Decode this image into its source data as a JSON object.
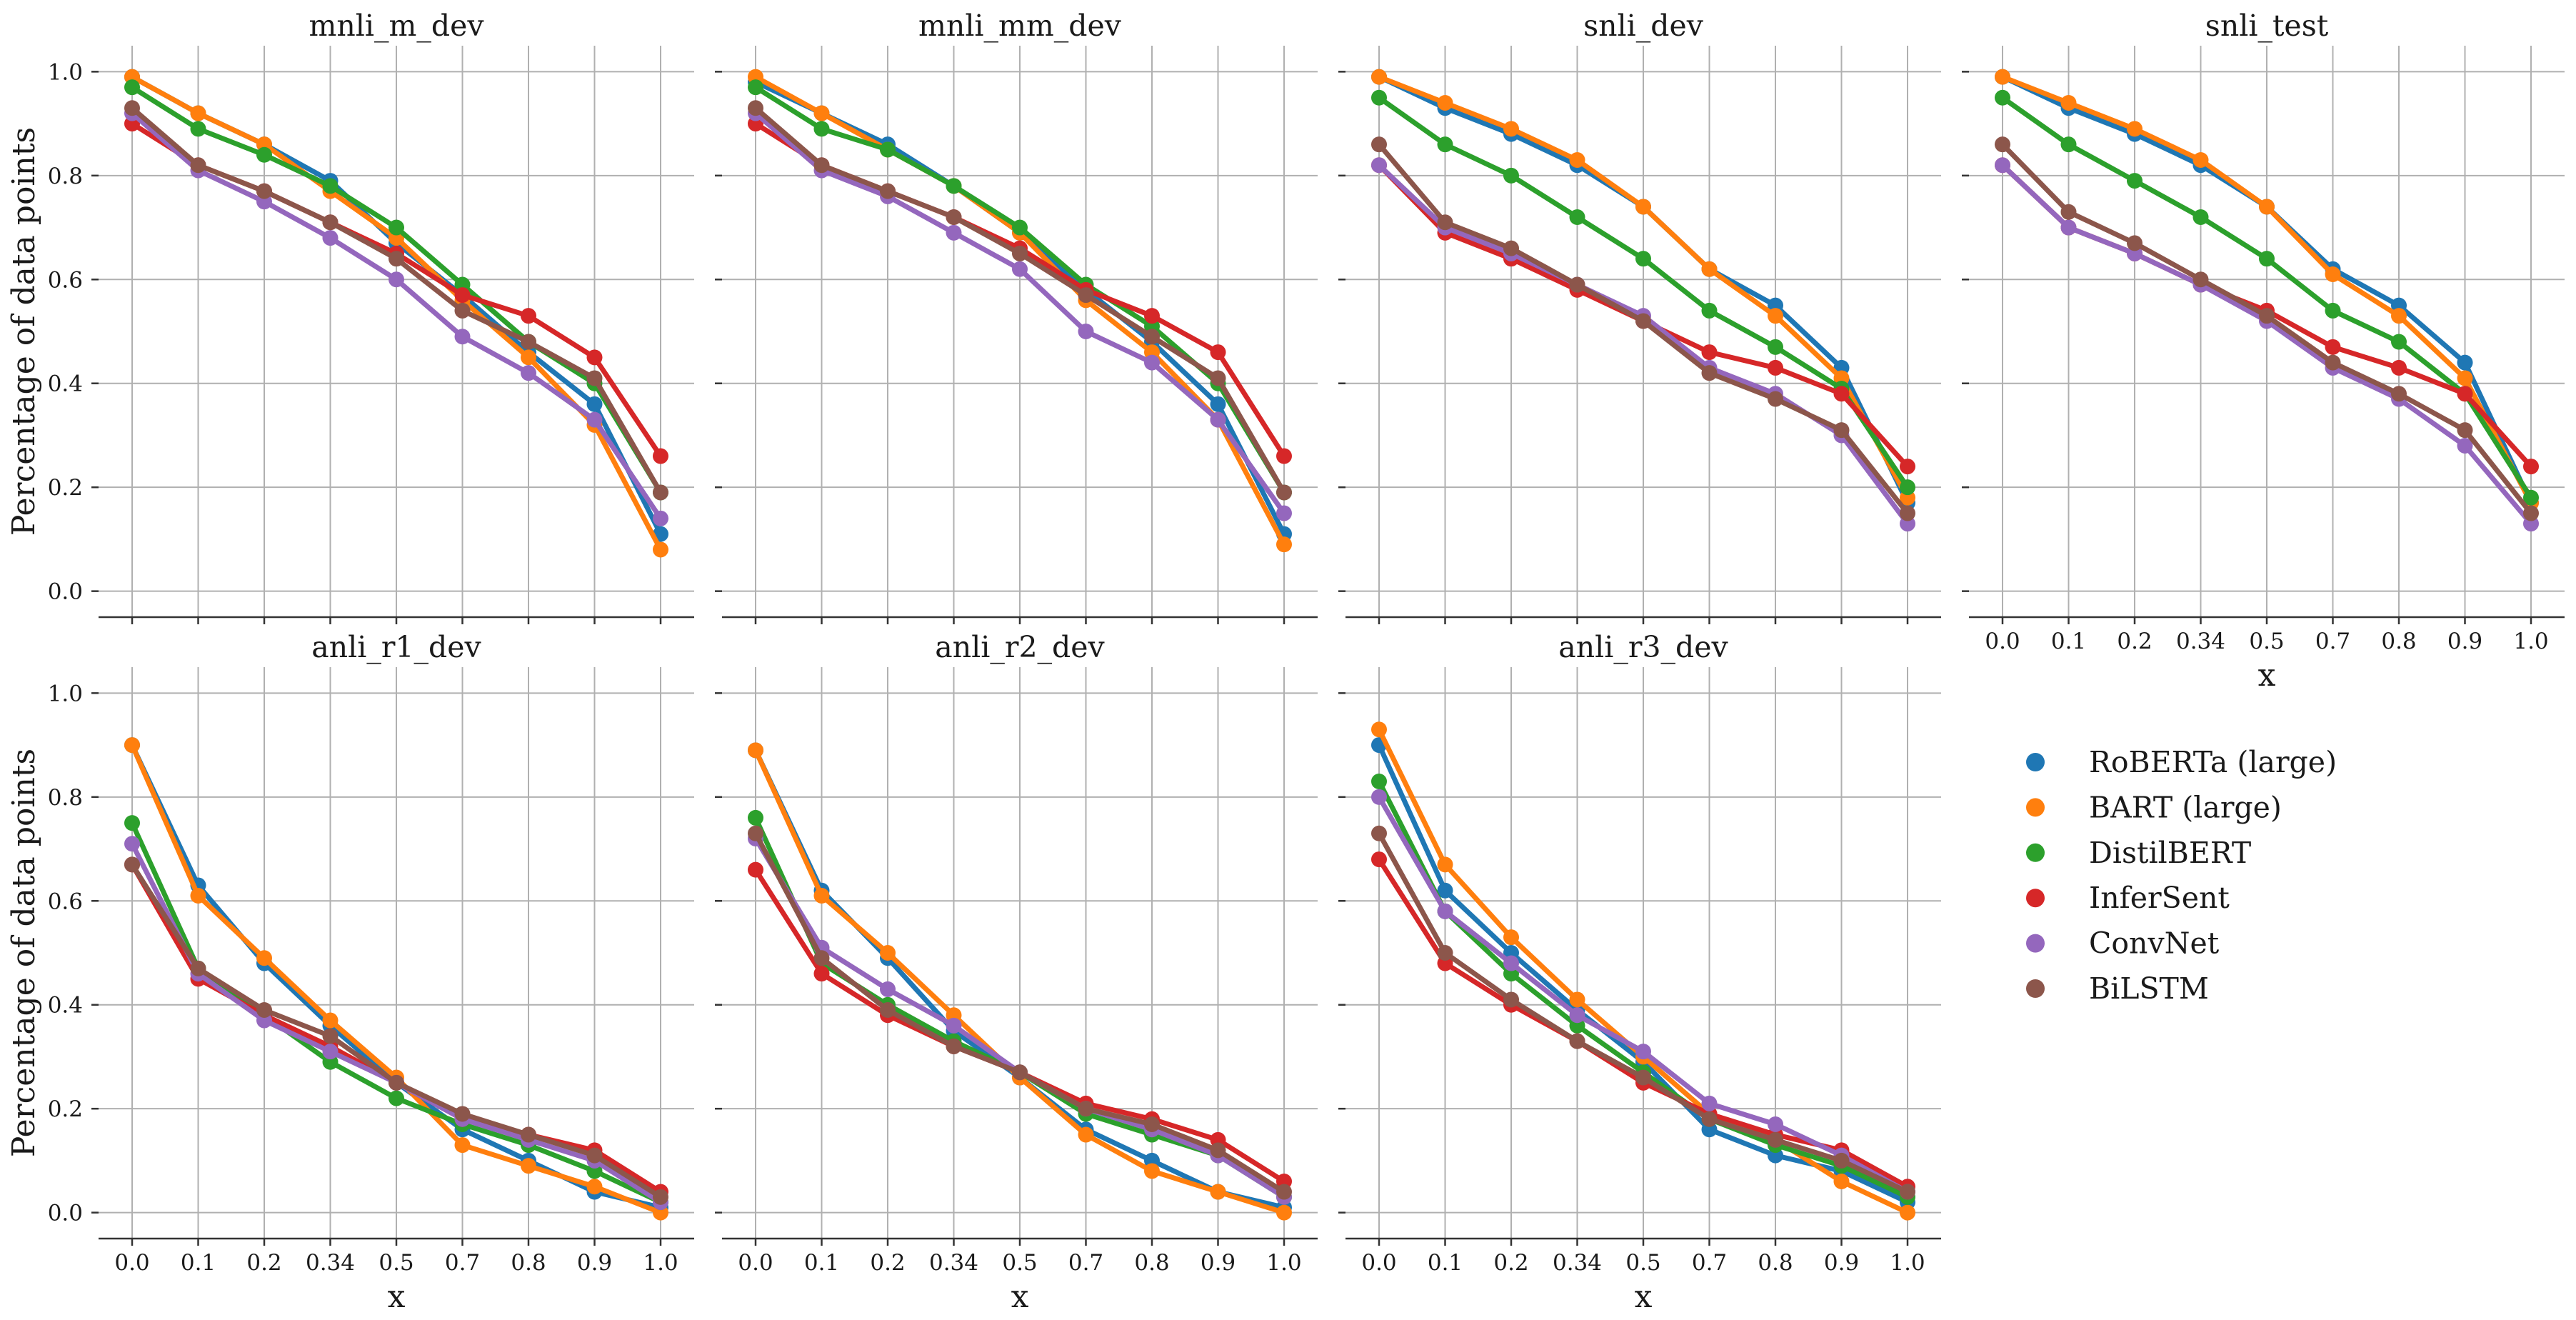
{
  "figure": {
    "ylabel": "Percentage of data points",
    "xlabel": "x"
  },
  "series_styles": [
    {
      "name": "RoBERTa (large)",
      "color": "#1f77b4"
    },
    {
      "name": "BART (large)",
      "color": "#ff7f0e"
    },
    {
      "name": "DistilBERT",
      "color": "#2ca02c"
    },
    {
      "name": "InferSent",
      "color": "#d62728"
    },
    {
      "name": "ConvNet",
      "color": "#9467bd"
    },
    {
      "name": "BiLSTM",
      "color": "#8c564b"
    }
  ],
  "chart_data": [
    {
      "type": "line",
      "title": "mnli_m_dev",
      "categories": [
        "0.0",
        "0.1",
        "0.2",
        "0.34",
        "0.5",
        "0.7",
        "0.8",
        "0.9",
        "1.0"
      ],
      "ylim": [
        -0.05,
        1.05
      ],
      "yticks": [
        "0.0",
        "0.2",
        "0.4",
        "0.6",
        "0.8",
        "1.0"
      ],
      "grid": true,
      "series": [
        {
          "name": "RoBERTa (large)",
          "values": [
            0.99,
            0.92,
            0.86,
            0.79,
            0.67,
            0.57,
            0.46,
            0.36,
            0.11
          ]
        },
        {
          "name": "BART (large)",
          "values": [
            0.99,
            0.92,
            0.86,
            0.77,
            0.68,
            0.56,
            0.45,
            0.32,
            0.08
          ]
        },
        {
          "name": "DistilBERT",
          "values": [
            0.97,
            0.89,
            0.84,
            0.78,
            0.7,
            0.59,
            0.48,
            0.4,
            0.19
          ]
        },
        {
          "name": "InferSent",
          "values": [
            0.9,
            0.82,
            0.77,
            0.71,
            0.65,
            0.57,
            0.53,
            0.45,
            0.26
          ]
        },
        {
          "name": "ConvNet",
          "values": [
            0.92,
            0.81,
            0.75,
            0.68,
            0.6,
            0.49,
            0.42,
            0.33,
            0.14
          ]
        },
        {
          "name": "BiLSTM",
          "values": [
            0.93,
            0.82,
            0.77,
            0.71,
            0.64,
            0.54,
            0.48,
            0.41,
            0.19
          ]
        }
      ]
    },
    {
      "type": "line",
      "title": "mnli_mm_dev",
      "categories": [
        "0.0",
        "0.1",
        "0.2",
        "0.34",
        "0.5",
        "0.7",
        "0.8",
        "0.9",
        "1.0"
      ],
      "ylim": [
        -0.05,
        1.05
      ],
      "yticks": [
        "0.0",
        "0.2",
        "0.4",
        "0.6",
        "0.8",
        "1.0"
      ],
      "grid": true,
      "series": [
        {
          "name": "RoBERTa (large)",
          "values": [
            0.98,
            0.92,
            0.86,
            0.78,
            0.69,
            0.58,
            0.48,
            0.36,
            0.11
          ]
        },
        {
          "name": "BART (large)",
          "values": [
            0.99,
            0.92,
            0.85,
            0.78,
            0.69,
            0.56,
            0.46,
            0.33,
            0.09
          ]
        },
        {
          "name": "DistilBERT",
          "values": [
            0.97,
            0.89,
            0.85,
            0.78,
            0.7,
            0.59,
            0.51,
            0.4,
            0.19
          ]
        },
        {
          "name": "InferSent",
          "values": [
            0.9,
            0.82,
            0.77,
            0.72,
            0.66,
            0.58,
            0.53,
            0.46,
            0.26
          ]
        },
        {
          "name": "ConvNet",
          "values": [
            0.92,
            0.81,
            0.76,
            0.69,
            0.62,
            0.5,
            0.44,
            0.33,
            0.15
          ]
        },
        {
          "name": "BiLSTM",
          "values": [
            0.93,
            0.82,
            0.77,
            0.72,
            0.65,
            0.57,
            0.49,
            0.41,
            0.19
          ]
        }
      ]
    },
    {
      "type": "line",
      "title": "snli_dev",
      "categories": [
        "0.0",
        "0.1",
        "0.2",
        "0.34",
        "0.5",
        "0.7",
        "0.8",
        "0.9",
        "1.0"
      ],
      "ylim": [
        -0.05,
        1.05
      ],
      "yticks": [
        "0.0",
        "0.2",
        "0.4",
        "0.6",
        "0.8",
        "1.0"
      ],
      "grid": true,
      "series": [
        {
          "name": "RoBERTa (large)",
          "values": [
            0.99,
            0.93,
            0.88,
            0.82,
            0.74,
            0.62,
            0.55,
            0.43,
            0.17
          ]
        },
        {
          "name": "BART (large)",
          "values": [
            0.99,
            0.94,
            0.89,
            0.83,
            0.74,
            0.62,
            0.53,
            0.41,
            0.18
          ]
        },
        {
          "name": "DistilBERT",
          "values": [
            0.95,
            0.86,
            0.8,
            0.72,
            0.64,
            0.54,
            0.47,
            0.39,
            0.2
          ]
        },
        {
          "name": "InferSent",
          "values": [
            0.82,
            0.69,
            0.64,
            0.58,
            0.52,
            0.46,
            0.43,
            0.38,
            0.24
          ]
        },
        {
          "name": "ConvNet",
          "values": [
            0.82,
            0.7,
            0.65,
            0.59,
            0.53,
            0.43,
            0.38,
            0.3,
            0.13
          ]
        },
        {
          "name": "BiLSTM",
          "values": [
            0.86,
            0.71,
            0.66,
            0.59,
            0.52,
            0.42,
            0.37,
            0.31,
            0.15
          ]
        }
      ]
    },
    {
      "type": "line",
      "title": "snli_test",
      "xlabel": "x",
      "categories": [
        "0.0",
        "0.1",
        "0.2",
        "0.34",
        "0.5",
        "0.7",
        "0.8",
        "0.9",
        "1.0"
      ],
      "ylim": [
        -0.05,
        1.05
      ],
      "yticks": [
        "0.0",
        "0.2",
        "0.4",
        "0.6",
        "0.8",
        "1.0"
      ],
      "grid": true,
      "series": [
        {
          "name": "RoBERTa (large)",
          "values": [
            0.99,
            0.93,
            0.88,
            0.82,
            0.74,
            0.62,
            0.55,
            0.44,
            0.17
          ]
        },
        {
          "name": "BART (large)",
          "values": [
            0.99,
            0.94,
            0.89,
            0.83,
            0.74,
            0.61,
            0.53,
            0.41,
            0.17
          ]
        },
        {
          "name": "DistilBERT",
          "values": [
            0.95,
            0.86,
            0.79,
            0.72,
            0.64,
            0.54,
            0.48,
            0.38,
            0.18
          ]
        },
        {
          "name": "InferSent",
          "values": [
            0.82,
            0.7,
            0.65,
            0.59,
            0.54,
            0.47,
            0.43,
            0.38,
            0.24
          ]
        },
        {
          "name": "ConvNet",
          "values": [
            0.82,
            0.7,
            0.65,
            0.59,
            0.52,
            0.43,
            0.37,
            0.28,
            0.13
          ]
        },
        {
          "name": "BiLSTM",
          "values": [
            0.86,
            0.73,
            0.67,
            0.6,
            0.53,
            0.44,
            0.38,
            0.31,
            0.15
          ]
        }
      ]
    },
    {
      "type": "line",
      "title": "anli_r1_dev",
      "xlabel": "x",
      "categories": [
        "0.0",
        "0.1",
        "0.2",
        "0.34",
        "0.5",
        "0.7",
        "0.8",
        "0.9",
        "1.0"
      ],
      "ylim": [
        -0.05,
        1.05
      ],
      "yticks": [
        "0.0",
        "0.2",
        "0.4",
        "0.6",
        "0.8",
        "1.0"
      ],
      "grid": true,
      "series": [
        {
          "name": "RoBERTa (large)",
          "values": [
            0.9,
            0.63,
            0.48,
            0.36,
            0.25,
            0.16,
            0.1,
            0.04,
            0.01
          ]
        },
        {
          "name": "BART (large)",
          "values": [
            0.9,
            0.61,
            0.49,
            0.37,
            0.26,
            0.13,
            0.09,
            0.05,
            0.0
          ]
        },
        {
          "name": "DistilBERT",
          "values": [
            0.75,
            0.47,
            0.38,
            0.29,
            0.22,
            0.17,
            0.13,
            0.08,
            0.02
          ]
        },
        {
          "name": "InferSent",
          "values": [
            0.67,
            0.45,
            0.38,
            0.32,
            0.25,
            0.18,
            0.15,
            0.12,
            0.04
          ]
        },
        {
          "name": "ConvNet",
          "values": [
            0.71,
            0.46,
            0.37,
            0.31,
            0.25,
            0.18,
            0.14,
            0.1,
            0.02
          ]
        },
        {
          "name": "BiLSTM",
          "values": [
            0.67,
            0.47,
            0.39,
            0.34,
            0.25,
            0.19,
            0.15,
            0.11,
            0.03
          ]
        }
      ]
    },
    {
      "type": "line",
      "title": "anli_r2_dev",
      "xlabel": "x",
      "categories": [
        "0.0",
        "0.1",
        "0.2",
        "0.34",
        "0.5",
        "0.7",
        "0.8",
        "0.9",
        "1.0"
      ],
      "ylim": [
        -0.05,
        1.05
      ],
      "yticks": [
        "0.0",
        "0.2",
        "0.4",
        "0.6",
        "0.8",
        "1.0"
      ],
      "grid": true,
      "series": [
        {
          "name": "RoBERTa (large)",
          "values": [
            0.89,
            0.62,
            0.49,
            0.35,
            0.26,
            0.16,
            0.1,
            0.04,
            0.01
          ]
        },
        {
          "name": "BART (large)",
          "values": [
            0.89,
            0.61,
            0.5,
            0.38,
            0.26,
            0.15,
            0.08,
            0.04,
            0.0
          ]
        },
        {
          "name": "DistilBERT",
          "values": [
            0.76,
            0.48,
            0.4,
            0.33,
            0.27,
            0.19,
            0.15,
            0.11,
            0.03
          ]
        },
        {
          "name": "InferSent",
          "values": [
            0.66,
            0.46,
            0.38,
            0.32,
            0.27,
            0.21,
            0.18,
            0.14,
            0.06
          ]
        },
        {
          "name": "ConvNet",
          "values": [
            0.72,
            0.51,
            0.43,
            0.36,
            0.27,
            0.2,
            0.16,
            0.11,
            0.03
          ]
        },
        {
          "name": "BiLSTM",
          "values": [
            0.73,
            0.49,
            0.39,
            0.32,
            0.27,
            0.2,
            0.17,
            0.12,
            0.04
          ]
        }
      ]
    },
    {
      "type": "line",
      "title": "anli_r3_dev",
      "xlabel": "x",
      "categories": [
        "0.0",
        "0.1",
        "0.2",
        "0.34",
        "0.5",
        "0.7",
        "0.8",
        "0.9",
        "1.0"
      ],
      "ylim": [
        -0.05,
        1.05
      ],
      "yticks": [
        "0.0",
        "0.2",
        "0.4",
        "0.6",
        "0.8",
        "1.0"
      ],
      "grid": true,
      "series": [
        {
          "name": "RoBERTa (large)",
          "values": [
            0.9,
            0.62,
            0.5,
            0.39,
            0.29,
            0.16,
            0.11,
            0.08,
            0.02
          ]
        },
        {
          "name": "BART (large)",
          "values": [
            0.93,
            0.67,
            0.53,
            0.41,
            0.3,
            0.19,
            0.14,
            0.06,
            0.0
          ]
        },
        {
          "name": "DistilBERT",
          "values": [
            0.83,
            0.58,
            0.46,
            0.36,
            0.27,
            0.18,
            0.13,
            0.09,
            0.03
          ]
        },
        {
          "name": "InferSent",
          "values": [
            0.68,
            0.48,
            0.4,
            0.33,
            0.25,
            0.19,
            0.15,
            0.12,
            0.05
          ]
        },
        {
          "name": "ConvNet",
          "values": [
            0.8,
            0.58,
            0.48,
            0.38,
            0.31,
            0.21,
            0.17,
            0.11,
            0.04
          ]
        },
        {
          "name": "BiLSTM",
          "values": [
            0.73,
            0.5,
            0.41,
            0.33,
            0.26,
            0.18,
            0.14,
            0.1,
            0.04
          ]
        }
      ]
    }
  ]
}
